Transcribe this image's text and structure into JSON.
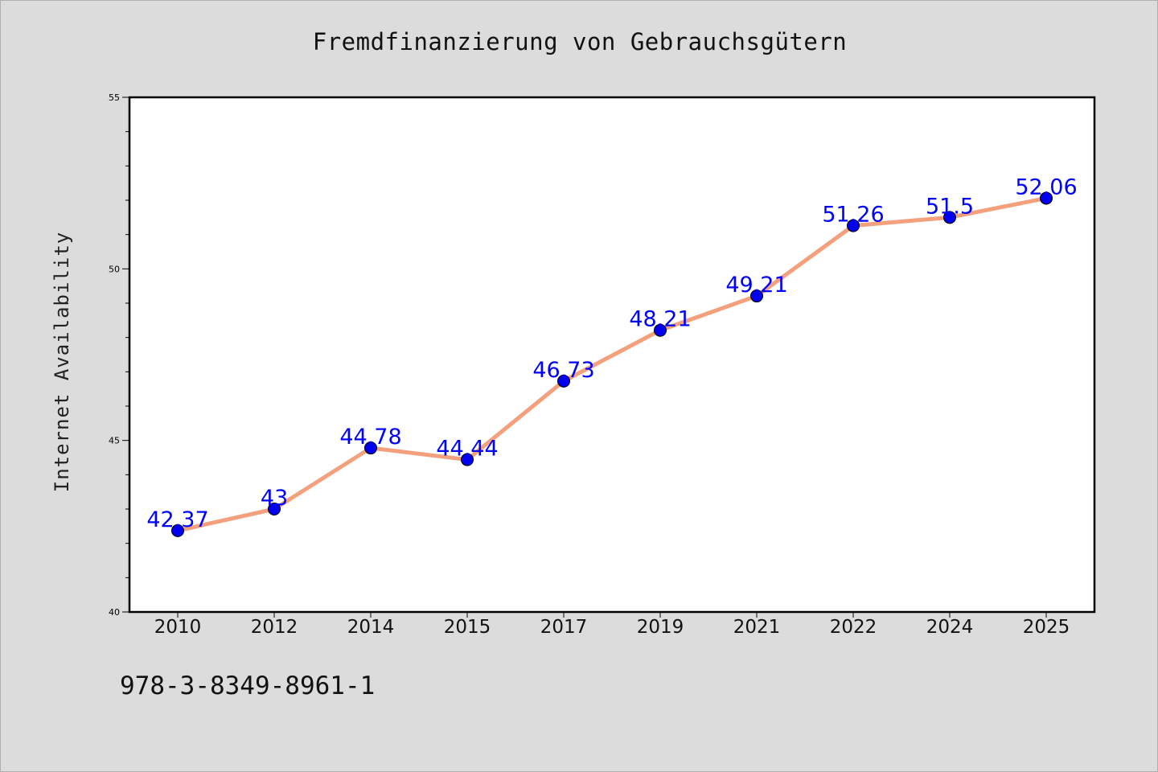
{
  "chart_data": {
    "type": "line",
    "title": "Fremdfinanzierung von Gebrauchsgütern",
    "xlabel": "",
    "ylabel": "Internet Availability",
    "categories": [
      "2010",
      "2012",
      "2014",
      "2015",
      "2017",
      "2019",
      "2021",
      "2022",
      "2024",
      "2025"
    ],
    "values": [
      42.37,
      43,
      44.78,
      44.44,
      46.73,
      48.21,
      49.21,
      51.26,
      51.5,
      52.06
    ],
    "value_labels": [
      "42.37",
      "43",
      "44.78",
      "44.44",
      "46.73",
      "48.21",
      "49.21",
      "51.26",
      "51.5",
      "52.06"
    ],
    "ylim": [
      40,
      55
    ],
    "yticks_major": [
      40,
      45,
      50,
      55
    ],
    "yticks_major_labels": [
      "40",
      "45",
      "50",
      "55"
    ],
    "yticks_minor": [
      41,
      42,
      43,
      44,
      46,
      47,
      48,
      49,
      51,
      52,
      53,
      54
    ],
    "grid": false,
    "legend": "none",
    "colors": {
      "line": "#f4a07c",
      "marker": "#0000ee",
      "label": "#0000ff",
      "plot_bg": "#ffffff",
      "page_bg": "#dcdcdc"
    }
  },
  "footnote": "978-3-8349-8961-1"
}
